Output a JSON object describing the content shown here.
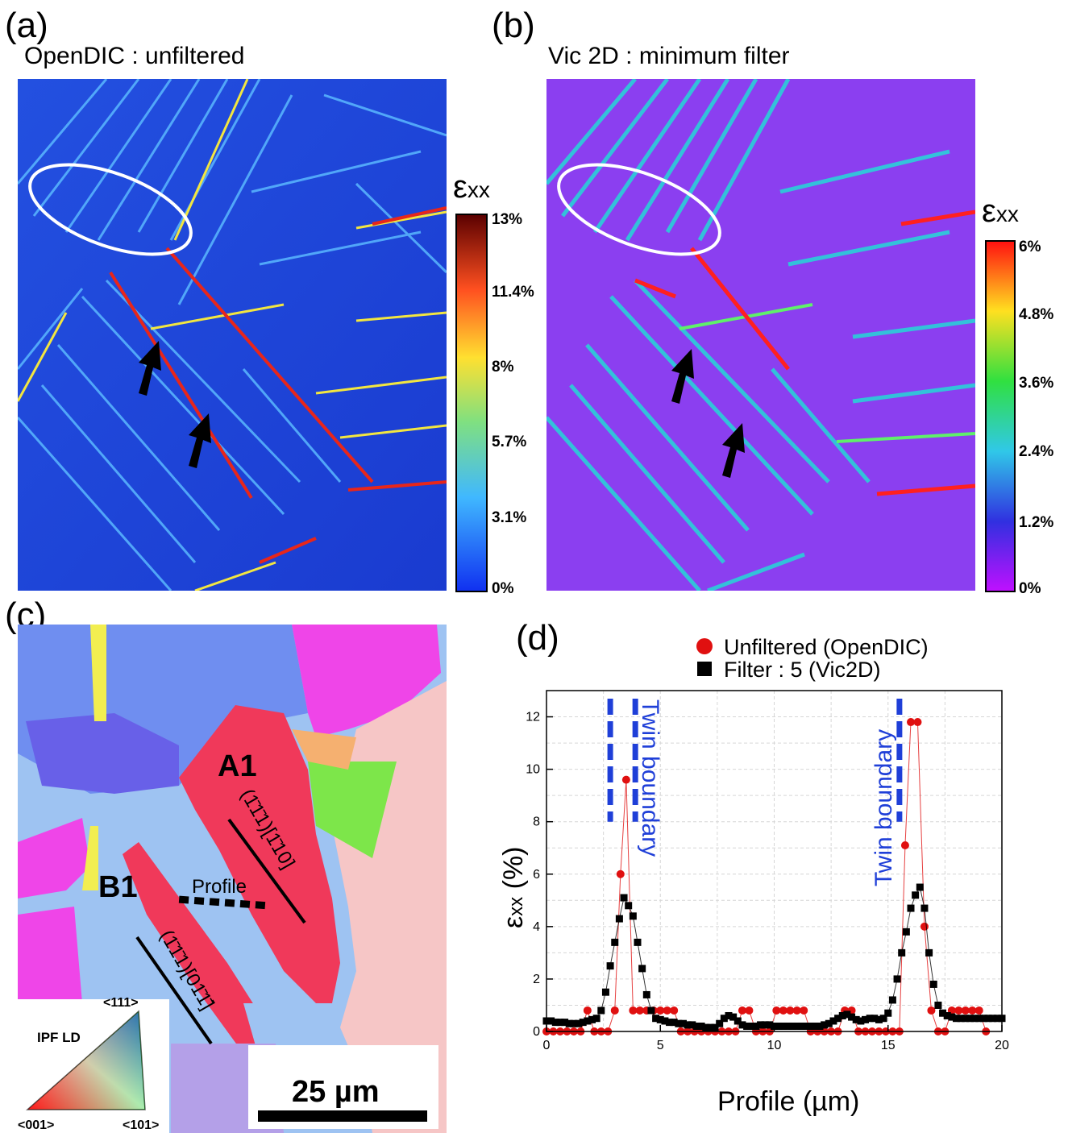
{
  "panel_a": {
    "letter": "(a)",
    "title": "OpenDIC : unfiltered",
    "colorbar_title_symbol": "ε",
    "colorbar_title_sub": "xx",
    "colorbar_ticks": [
      "13%",
      "11.4%",
      "8%",
      "5.7%",
      "3.1%",
      "0%"
    ],
    "colors": {
      "background": "#1a3fd6",
      "band_low": "#4fb4ff",
      "band_high": "#e8261a"
    }
  },
  "panel_b": {
    "letter": "(b)",
    "title": "Vic 2D  : minimum filter",
    "colorbar_title_symbol": "ε",
    "colorbar_title_sub": "xx",
    "colorbar_ticks": [
      "6%",
      "4.8%",
      "3.6%",
      "2.4%",
      "1.2%",
      "0%"
    ],
    "colors": {
      "background": "#8a3ff0",
      "band": "#3fe6c8",
      "band_high": "#ff2020"
    }
  },
  "panel_c": {
    "letter": "(c)",
    "grain_a": "A1",
    "grain_b": "B1",
    "profile_label": "Profile",
    "slip_a": "(1̄1̄1)[1̄10]",
    "slip_b": "(1̄1̄1)[01̄1̄]",
    "scale_bar": "25 µm",
    "ipf_title": "IPF LD",
    "ipf_corner_top": "<111>",
    "ipf_corner_left": "<001>",
    "ipf_corner_right": "<101>",
    "colors": {
      "grain_red": "#f0395a",
      "grain_lightblue": "#9ec3f2",
      "grain_magenta": "#ef45e8",
      "grain_pink": "#f6c6c6",
      "grain_green": "#7de64a"
    }
  },
  "panel_d": {
    "letter": "(d)",
    "legend": [
      {
        "label": "Unfiltered (OpenDIC)",
        "marker": "circle",
        "color": "#e01010"
      },
      {
        "label": "Filter : 5  (Vic2D)",
        "marker": "square",
        "color": "#000000"
      }
    ],
    "annotation_left": "Twin boundary",
    "annotation_right": "Twin boundary",
    "annotation_color": "#1f3fd8"
  },
  "chart_data": {
    "type": "scatter",
    "title": "",
    "xlabel": "Profile (µm)",
    "ylabel_symbol": "ε",
    "ylabel_sub": "xx",
    "ylabel_unit": " (%)",
    "xlim": [
      0,
      20
    ],
    "ylim": [
      0,
      13
    ],
    "xticks": [
      0,
      5,
      10,
      15,
      20
    ],
    "yticks": [
      0,
      2,
      4,
      6,
      8,
      10,
      12
    ],
    "grid": true,
    "legend_position": "top",
    "twin_boundaries_x": [
      2.8,
      3.9,
      15.5
    ],
    "series": [
      {
        "name": "Unfiltered (OpenDIC)",
        "marker": "circle",
        "color": "#e01010",
        "x": [
          0,
          0.3,
          0.6,
          0.9,
          1.2,
          1.5,
          1.8,
          2.1,
          2.4,
          2.7,
          3.0,
          3.25,
          3.5,
          3.8,
          4.1,
          4.4,
          4.7,
          5.0,
          5.3,
          5.6,
          5.9,
          6.2,
          6.5,
          6.8,
          7.1,
          7.4,
          7.7,
          8.0,
          8.3,
          8.6,
          8.9,
          9.2,
          9.5,
          9.8,
          10.1,
          10.4,
          10.7,
          11.0,
          11.3,
          11.6,
          11.9,
          12.2,
          12.5,
          12.8,
          13.1,
          13.4,
          13.7,
          14.0,
          14.3,
          14.6,
          14.9,
          15.2,
          15.5,
          15.75,
          16.0,
          16.3,
          16.6,
          16.9,
          17.2,
          17.5,
          17.8,
          18.1,
          18.4,
          18.7,
          19.0,
          19.3
        ],
        "y": [
          0,
          0,
          0,
          0,
          0,
          0,
          0.8,
          0,
          0,
          0,
          0.8,
          6.0,
          9.6,
          0.8,
          0.8,
          0.8,
          0.8,
          0.8,
          0.8,
          0.8,
          0,
          0,
          0,
          0,
          0,
          0,
          0,
          0,
          0,
          0.8,
          0.8,
          0,
          0,
          0,
          0.8,
          0.8,
          0.8,
          0.8,
          0.8,
          0,
          0,
          0,
          0,
          0,
          0.8,
          0.8,
          0,
          0,
          0,
          0,
          0,
          0,
          0,
          7.1,
          11.8,
          11.8,
          4.0,
          0.8,
          0,
          0,
          0.8,
          0.8,
          0.8,
          0.8,
          0.8,
          0
        ]
      },
      {
        "name": "Filter : 5  (Vic2D)",
        "marker": "square",
        "color": "#000000",
        "x": [
          0,
          0.2,
          0.4,
          0.6,
          0.8,
          1.0,
          1.2,
          1.4,
          1.6,
          1.8,
          2.0,
          2.2,
          2.4,
          2.6,
          2.8,
          3.0,
          3.2,
          3.4,
          3.6,
          3.8,
          4.0,
          4.2,
          4.4,
          4.6,
          4.8,
          5.0,
          5.2,
          5.4,
          5.6,
          5.8,
          6.0,
          6.2,
          6.4,
          6.6,
          6.8,
          7.0,
          7.2,
          7.4,
          7.6,
          7.8,
          8.0,
          8.2,
          8.4,
          8.6,
          8.8,
          9.0,
          9.2,
          9.4,
          9.6,
          9.8,
          10.0,
          10.2,
          10.4,
          10.6,
          10.8,
          11.0,
          11.2,
          11.4,
          11.6,
          11.8,
          12.0,
          12.2,
          12.4,
          12.6,
          12.8,
          13.0,
          13.2,
          13.4,
          13.6,
          13.8,
          14.0,
          14.2,
          14.4,
          14.6,
          14.8,
          15.0,
          15.2,
          15.4,
          15.6,
          15.8,
          16.0,
          16.2,
          16.4,
          16.6,
          16.8,
          17.0,
          17.2,
          17.4,
          17.6,
          17.8,
          18.0,
          18.2,
          18.4,
          18.6,
          18.8,
          19.0,
          19.2,
          19.4,
          19.6,
          19.8,
          20.0
        ],
        "y": [
          0.4,
          0.4,
          0.35,
          0.35,
          0.35,
          0.3,
          0.3,
          0.3,
          0.35,
          0.4,
          0.45,
          0.5,
          0.8,
          1.5,
          2.5,
          3.4,
          4.3,
          5.1,
          4.8,
          4.4,
          3.4,
          2.4,
          1.4,
          0.8,
          0.5,
          0.45,
          0.4,
          0.35,
          0.35,
          0.3,
          0.3,
          0.25,
          0.25,
          0.2,
          0.2,
          0.15,
          0.15,
          0.15,
          0.3,
          0.5,
          0.6,
          0.55,
          0.4,
          0.25,
          0.2,
          0.2,
          0.2,
          0.25,
          0.25,
          0.25,
          0.2,
          0.2,
          0.2,
          0.2,
          0.2,
          0.2,
          0.2,
          0.2,
          0.2,
          0.2,
          0.2,
          0.25,
          0.3,
          0.4,
          0.5,
          0.6,
          0.65,
          0.55,
          0.45,
          0.4,
          0.45,
          0.5,
          0.5,
          0.45,
          0.5,
          0.7,
          1.2,
          2.0,
          3.0,
          3.8,
          4.7,
          5.2,
          5.5,
          4.7,
          3.0,
          1.8,
          1.0,
          0.7,
          0.6,
          0.55,
          0.5,
          0.5,
          0.5,
          0.5,
          0.5,
          0.5,
          0.5,
          0.5,
          0.5,
          0.5,
          0.5
        ]
      }
    ]
  }
}
